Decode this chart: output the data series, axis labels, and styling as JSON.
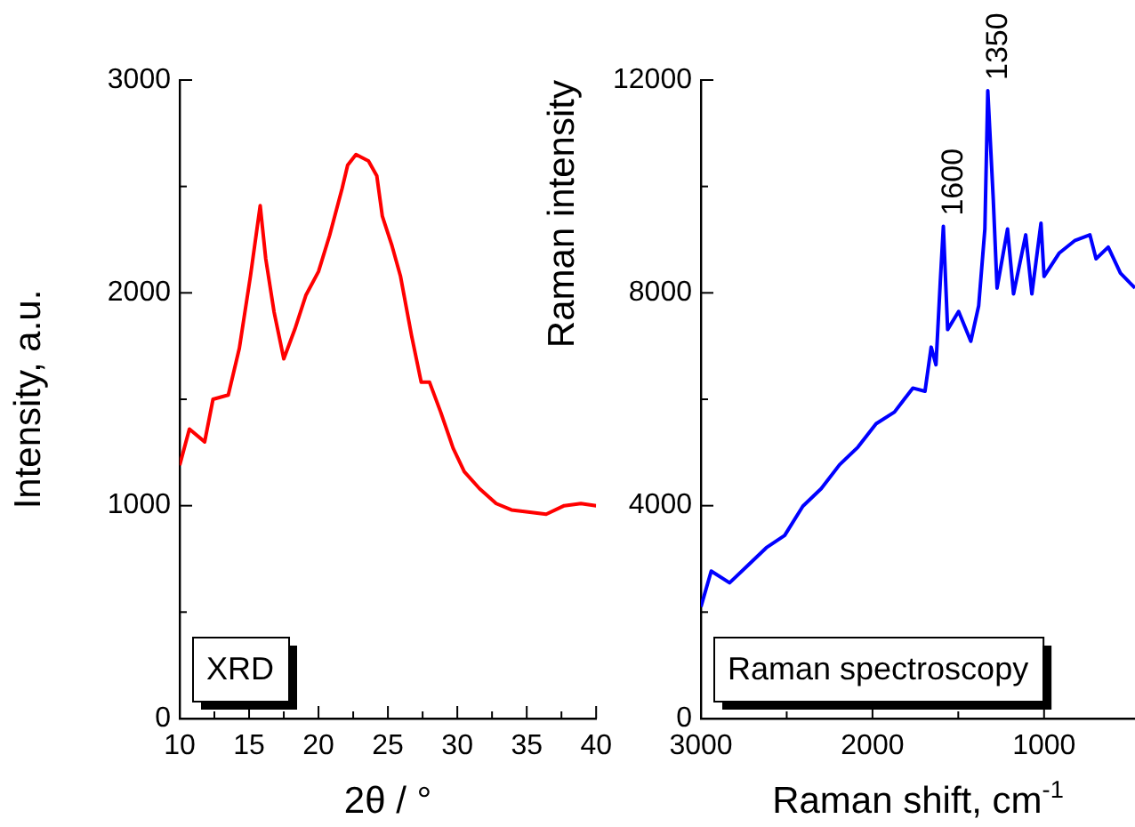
{
  "chart_data": [
    {
      "type": "line",
      "xlabel": "2θ / °",
      "ylabel": "Intensity, a.u.",
      "annotations": [
        "XRD"
      ],
      "grid": false,
      "legend": false,
      "marker": "none",
      "line_style": "solid",
      "xlim": [
        10,
        40
      ],
      "xticks": [
        10,
        {
          "value": 12.5,
          "label": null
        },
        15,
        {
          "value": 17.5,
          "label": null
        },
        20,
        {
          "value": 22.5,
          "label": null
        },
        25,
        {
          "value": 27.5,
          "label": null
        },
        30,
        {
          "value": 32.5,
          "label": null
        },
        35,
        {
          "value": 37.5,
          "label": null
        },
        40
      ],
      "ylim": [
        0,
        3000
      ],
      "yticks": [
        0,
        {
          "value": 500,
          "label": null
        },
        1000,
        {
          "value": 1500,
          "label": null
        },
        2000,
        {
          "value": 2500,
          "label": null
        },
        3000
      ],
      "series": [
        {
          "color": "#ff0000",
          "x": [
            10,
            10.7,
            11.8,
            12.4,
            13.5,
            14.3,
            15.1,
            15.8,
            16.2,
            16.8,
            17.5,
            18.3,
            19.1,
            20.0,
            20.8,
            21.7,
            22.1,
            22.7,
            23.6,
            24.2,
            24.6,
            25.3,
            25.9,
            26.7,
            27.4,
            28.0,
            28.8,
            29.7,
            30.5,
            31.6,
            32.8,
            33.9,
            35.1,
            36.4,
            37.7,
            38.9,
            40
          ],
          "values": [
            1190,
            1360,
            1300,
            1500,
            1520,
            1740,
            2080,
            2410,
            2160,
            1910,
            1690,
            1830,
            1990,
            2100,
            2270,
            2490,
            2600,
            2650,
            2620,
            2550,
            2360,
            2220,
            2080,
            1800,
            1580,
            1580,
            1440,
            1270,
            1160,
            1080,
            1010,
            980,
            970,
            960,
            1000,
            1010,
            1000
          ]
        }
      ]
    },
    {
      "type": "line",
      "xlabel": "Raman shift, cm$^{-1}$",
      "ylabel": "Raman intensity",
      "annotations": [
        "Raman spectroscopy",
        {
          "text": "1600",
          "x": 1587,
          "y": 9250
        },
        {
          "text": "1350",
          "x": 1328,
          "y": 11800
        }
      ],
      "grid": false,
      "legend": false,
      "marker": "none",
      "line_style": "solid",
      "xlim": [
        3000,
        470
      ],
      "xticks": [
        3000,
        {
          "value": 2500,
          "label": null
        },
        2000,
        {
          "value": 1500,
          "label": null
        },
        1000
      ],
      "ylim": [
        0,
        12000
      ],
      "yticks": [
        0,
        {
          "value": 2000,
          "label": null
        },
        4000,
        {
          "value": 6000,
          "label": null
        },
        8000,
        {
          "value": 10000,
          "label": null
        },
        12000
      ],
      "series": [
        {
          "color": "#0000ff",
          "x": [
            3000,
            2940,
            2833,
            2726,
            2619,
            2512,
            2406,
            2299,
            2192,
            2085,
            1979,
            1872,
            1765,
            1694,
            1658,
            1630,
            1605,
            1587,
            1562,
            1498,
            1427,
            1381,
            1345,
            1328,
            1296,
            1274,
            1213,
            1178,
            1107,
            1071,
            1018,
            1000,
            911,
            822,
            733,
            697,
            626,
            555,
            470
          ],
          "values": [
            2100,
            2770,
            2550,
            2880,
            3210,
            3440,
            3990,
            4320,
            4770,
            5100,
            5540,
            5760,
            6210,
            6150,
            6980,
            6650,
            8200,
            9250,
            7310,
            7650,
            7090,
            7760,
            9200,
            11800,
            9750,
            8090,
            9200,
            7980,
            9090,
            7980,
            9310,
            8310,
            8750,
            8980,
            9090,
            8640,
            8860,
            8370,
            8090
          ]
        }
      ]
    }
  ]
}
